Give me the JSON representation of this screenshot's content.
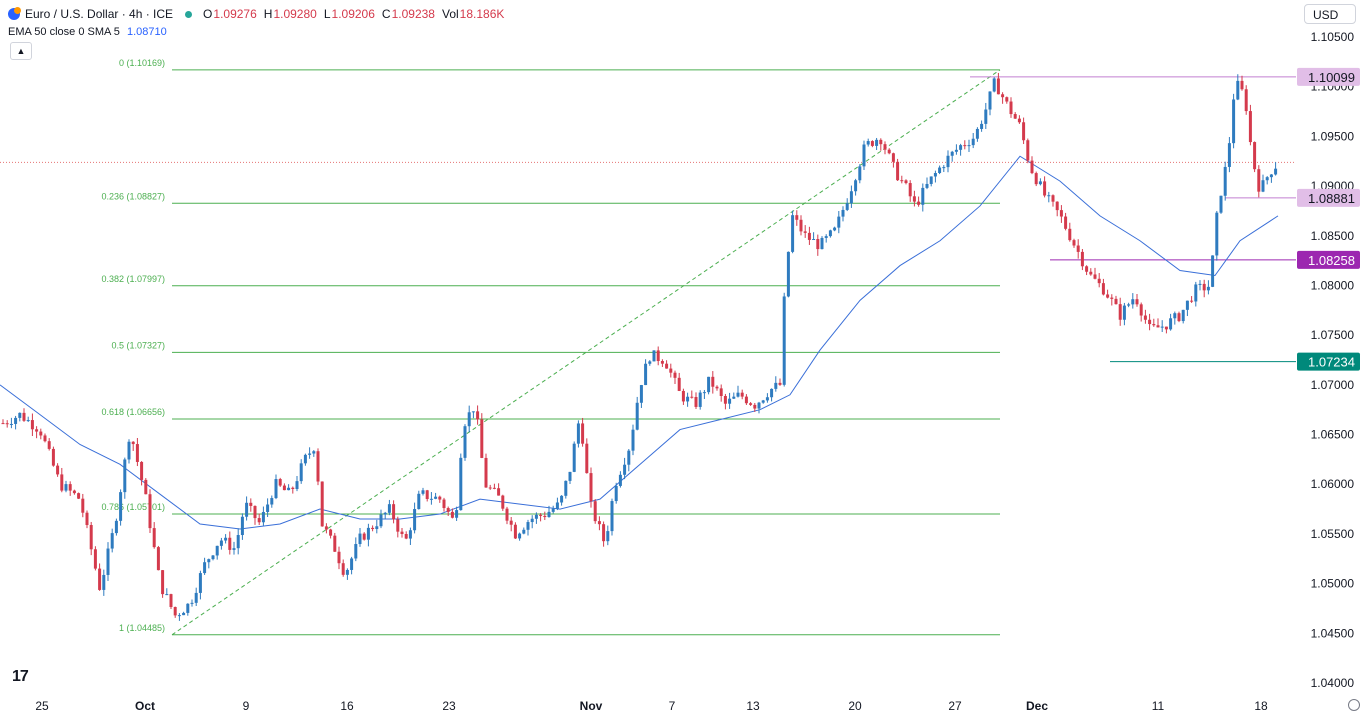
{
  "header": {
    "symbol": "Euro / U.S. Dollar · 4h · ICE",
    "open_label": "O",
    "open": "1.09276",
    "high_label": "H",
    "high": "1.09280",
    "low_label": "L",
    "low": "1.09206",
    "close_label": "C",
    "close": "1.09238",
    "vol_label": "Vol",
    "vol": "18.186K"
  },
  "indicator": {
    "label": "EMA 50 close 0 SMA 5",
    "value": "1.08710"
  },
  "currency": "USD",
  "colors": {
    "up": "#2e7bbf",
    "down": "#d43a4c",
    "ema": "#3a6fd8",
    "fib": "#4caf50",
    "hline": "#c27fd0"
  },
  "chart_data": {
    "type": "candlestick",
    "title": "",
    "x_tick_labels": [
      "25",
      "Oct",
      "9",
      "16",
      "23",
      "Nov",
      "7",
      "13",
      "20",
      "27",
      "Dec",
      "11",
      "18"
    ],
    "y_tick_labels": [
      "1.10500",
      "1.10000",
      "1.09500",
      "1.09000",
      "1.08500",
      "1.08000",
      "1.07500",
      "1.07000",
      "1.06500",
      "1.06000",
      "1.05500",
      "1.05000",
      "1.04500",
      "1.04000"
    ],
    "ylim": [
      1.0395,
      1.1082
    ],
    "fib_levels": [
      {
        "ratio": "0",
        "label": "0 (1.10169)",
        "value": 1.10169
      },
      {
        "ratio": "0.236",
        "label": "0.236 (1.08827)",
        "value": 1.08827
      },
      {
        "ratio": "0.382",
        "label": "0.382 (1.07997)",
        "value": 1.07997
      },
      {
        "ratio": "0.5",
        "label": "0.5 (1.07327)",
        "value": 1.07327
      },
      {
        "ratio": "0.618",
        "label": "0.618 (1.06656)",
        "value": 1.06656
      },
      {
        "ratio": "0.786",
        "label": "0.786 (1.05701)",
        "value": 1.05701
      },
      {
        "ratio": "1",
        "label": "1 (1.04485)",
        "value": 1.04485
      }
    ],
    "price_labels": [
      {
        "label": "1.10099",
        "value": 1.10099,
        "bg": "#e1bee7",
        "fg": "#131722"
      },
      {
        "label": "1.08881",
        "value": 1.08881,
        "bg": "#e1bee7",
        "fg": "#131722"
      },
      {
        "label": "1.08258",
        "value": 1.08258,
        "bg": "#9c27b0",
        "fg": "#ffffff"
      },
      {
        "label": "1.07234",
        "value": 1.07234,
        "bg": "#00897b",
        "fg": "#ffffff"
      }
    ],
    "current_price": 1.09238,
    "path": [
      [
        0,
        1.066
      ],
      [
        20,
        1.067
      ],
      [
        40,
        1.0655
      ],
      [
        60,
        1.06
      ],
      [
        80,
        1.0585
      ],
      [
        100,
        1.0495
      ],
      [
        115,
        1.056
      ],
      [
        130,
        1.0655
      ],
      [
        145,
        1.059
      ],
      [
        160,
        1.05
      ],
      [
        175,
        1.0468
      ],
      [
        190,
        1.048
      ],
      [
        205,
        1.052
      ],
      [
        220,
        1.0545
      ],
      [
        235,
        1.0535
      ],
      [
        245,
        1.058
      ],
      [
        260,
        1.056
      ],
      [
        275,
        1.06
      ],
      [
        290,
        1.059
      ],
      [
        305,
        1.0625
      ],
      [
        315,
        1.064
      ],
      [
        322,
        1.056
      ],
      [
        335,
        1.0535
      ],
      [
        345,
        1.051
      ],
      [
        360,
        1.0545
      ],
      [
        375,
        1.056
      ],
      [
        390,
        1.0575
      ],
      [
        405,
        1.054
      ],
      [
        420,
        1.059
      ],
      [
        440,
        1.0585
      ],
      [
        455,
        1.056
      ],
      [
        463,
        1.066
      ],
      [
        475,
        1.068
      ],
      [
        485,
        1.06
      ],
      [
        500,
        1.0585
      ],
      [
        515,
        1.055
      ],
      [
        530,
        1.0565
      ],
      [
        545,
        1.057
      ],
      [
        560,
        1.058
      ],
      [
        570,
        1.0615
      ],
      [
        580,
        1.067
      ],
      [
        590,
        1.058
      ],
      [
        605,
        1.054
      ],
      [
        615,
        1.06
      ],
      [
        630,
        1.064
      ],
      [
        640,
        1.07
      ],
      [
        650,
        1.073
      ],
      [
        665,
        1.0725
      ],
      [
        680,
        1.069
      ],
      [
        695,
        1.068
      ],
      [
        710,
        1.0705
      ],
      [
        725,
        1.068
      ],
      [
        740,
        1.069
      ],
      [
        755,
        1.068
      ],
      [
        770,
        1.0695
      ],
      [
        780,
        1.07
      ],
      [
        785,
        1.08
      ],
      [
        792,
        1.087
      ],
      [
        805,
        1.085
      ],
      [
        820,
        1.084
      ],
      [
        835,
        1.0855
      ],
      [
        850,
        1.0895
      ],
      [
        865,
        1.094
      ],
      [
        880,
        1.095
      ],
      [
        895,
        1.0915
      ],
      [
        905,
        1.09
      ],
      [
        915,
        1.088
      ],
      [
        930,
        1.0905
      ],
      [
        945,
        1.0925
      ],
      [
        960,
        1.094
      ],
      [
        975,
        1.095
      ],
      [
        985,
        1.0975
      ],
      [
        995,
        1.1005
      ],
      [
        1005,
        1.0985
      ],
      [
        1020,
        1.096
      ],
      [
        1030,
        1.092
      ],
      [
        1045,
        1.089
      ],
      [
        1060,
        1.087
      ],
      [
        1075,
        1.084
      ],
      [
        1090,
        1.081
      ],
      [
        1105,
        1.0795
      ],
      [
        1120,
        1.077
      ],
      [
        1135,
        1.079
      ],
      [
        1150,
        1.0755
      ],
      [
        1165,
        1.076
      ],
      [
        1180,
        1.077
      ],
      [
        1195,
        1.0795
      ],
      [
        1210,
        1.08
      ],
      [
        1218,
        1.088
      ],
      [
        1228,
        1.093
      ],
      [
        1235,
        1.1005
      ],
      [
        1245,
        1.099
      ],
      [
        1252,
        1.093
      ],
      [
        1260,
        1.0895
      ],
      [
        1270,
        1.0915
      ],
      [
        1278,
        1.0923
      ]
    ],
    "ema": [
      [
        0,
        1.07
      ],
      [
        40,
        1.067
      ],
      [
        80,
        1.064
      ],
      [
        120,
        1.062
      ],
      [
        160,
        1.059
      ],
      [
        200,
        1.056
      ],
      [
        240,
        1.0555
      ],
      [
        280,
        1.056
      ],
      [
        320,
        1.0575
      ],
      [
        360,
        1.0565
      ],
      [
        400,
        1.0565
      ],
      [
        440,
        1.057
      ],
      [
        480,
        1.0585
      ],
      [
        520,
        1.058
      ],
      [
        560,
        1.0575
      ],
      [
        600,
        1.0585
      ],
      [
        640,
        1.062
      ],
      [
        680,
        1.0655
      ],
      [
        720,
        1.0665
      ],
      [
        760,
        1.0675
      ],
      [
        790,
        1.069
      ],
      [
        820,
        1.0735
      ],
      [
        860,
        1.0785
      ],
      [
        900,
        1.082
      ],
      [
        940,
        1.0845
      ],
      [
        980,
        1.088
      ],
      [
        1020,
        1.093
      ],
      [
        1060,
        1.0905
      ],
      [
        1100,
        1.087
      ],
      [
        1140,
        1.0845
      ],
      [
        1180,
        1.0815
      ],
      [
        1215,
        1.081
      ],
      [
        1240,
        1.0845
      ],
      [
        1278,
        1.087
      ]
    ]
  }
}
